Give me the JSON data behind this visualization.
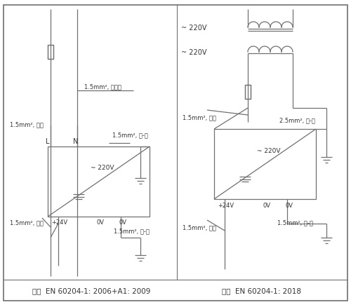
{
  "bg_color": "#ffffff",
  "line_color": "#707070",
  "title_left": "符合  EN 60204-1: 2006+A1: 2009",
  "title_right": "符合  EN 60204-1: 2018",
  "label_light_blue": "1.5mm², 浅蓝色",
  "label_black": "1.5mm², 黑色",
  "label_yg_top": "1.5mm², 黄-绿",
  "label_yg_bot": "1.5mm², 黄-绿",
  "label_blue1": "1.5mm², 蓝色",
  "label_blue2": "1.5mm², 蓝色",
  "label_red": "1.5mm², 红色",
  "label_yg3": "2.5mm², 黄-绿",
  "label_yg4": "1.5mm², 黄-绿",
  "voltage_ac": "~ 220V",
  "voltage_dc": "=",
  "plus24v": "+24V",
  "zero_v1": "0V",
  "zero_v2": "0V",
  "L_label": "L",
  "N_label": "N"
}
